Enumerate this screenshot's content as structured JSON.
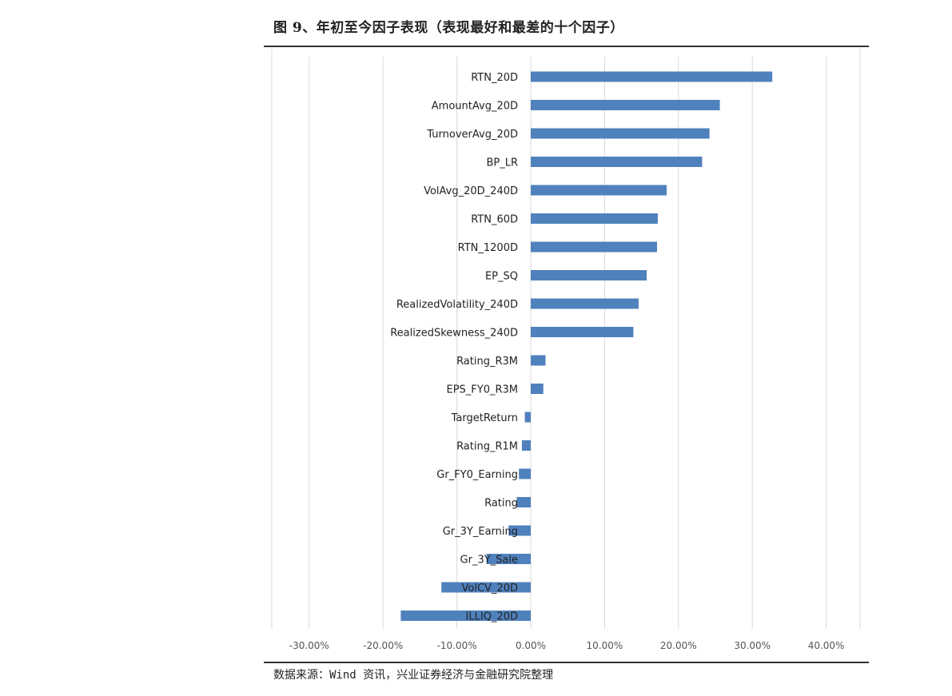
{
  "title": "图 9、年初至今因子表现（表现最好和最差的十个因子）",
  "source": "数据来源：Wind 资讯，兴业证券经济与金融研究院整理",
  "chart_data": {
    "type": "bar",
    "orientation": "horizontal",
    "categories": [
      "RTN_20D",
      "AmountAvg_20D",
      "TurnoverAvg_20D",
      "BP_LR",
      "VolAvg_20D_240D",
      "RTN_60D",
      "RTN_1200D",
      "EP_SQ",
      "RealizedVolatility_240D",
      "RealizedSkewness_240D",
      "Rating_R3M",
      "EPS_FY0_R3M",
      "TargetReturn",
      "Rating_R1M",
      "Gr_FY0_Earning",
      "Rating",
      "Gr_3Y_Earning",
      "Gr_3Y_Sale",
      "VolCV_20D",
      "ILLIQ_20D"
    ],
    "values": [
      0.327,
      0.256,
      0.242,
      0.232,
      0.184,
      0.172,
      0.171,
      0.157,
      0.146,
      0.139,
      0.02,
      0.017,
      -0.008,
      -0.012,
      -0.016,
      -0.019,
      -0.03,
      -0.06,
      -0.121,
      -0.176
    ],
    "xlim": [
      -0.35,
      0.45
    ],
    "xticks": [
      -0.3,
      -0.2,
      -0.1,
      0.0,
      0.1,
      0.2,
      0.3,
      0.4
    ],
    "xtick_labels": [
      "-30.00%",
      "-20.00%",
      "-10.00%",
      "0.00%",
      "10.00%",
      "20.00%",
      "30.00%",
      "40.00%"
    ],
    "grid": true,
    "legend": "none",
    "bar_color": "#4F81BD",
    "grid_color": "#D9D9D9"
  }
}
